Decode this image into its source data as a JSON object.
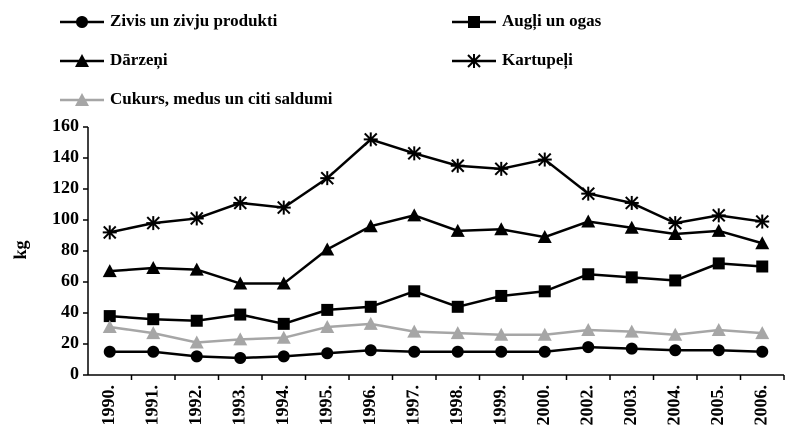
{
  "chart_data": {
    "type": "line",
    "y_label": "kg",
    "categories": [
      "1990.",
      "1991.",
      "1992.",
      "1993.",
      "1994.",
      "1995.",
      "1996.",
      "1997.",
      "1998.",
      "1999.",
      "2000.",
      "2002.",
      "2003.",
      "2004.",
      "2005.",
      "2006."
    ],
    "series": [
      {
        "name": "Zivis un zivju produkti",
        "color": "#000000",
        "marker": "circle",
        "values": [
          15,
          15,
          12,
          11,
          12,
          14,
          16,
          15,
          15,
          15,
          15,
          18,
          17,
          16,
          16,
          15
        ]
      },
      {
        "name": "Augļi un ogas",
        "color": "#000000",
        "marker": "square",
        "values": [
          38,
          36,
          35,
          39,
          33,
          42,
          44,
          54,
          44,
          51,
          54,
          65,
          63,
          61,
          72,
          70
        ]
      },
      {
        "name": "Dārzeņi",
        "color": "#000000",
        "marker": "triangle",
        "values": [
          67,
          69,
          68,
          59,
          59,
          81,
          96,
          103,
          93,
          94,
          89,
          99,
          95,
          91,
          93,
          85
        ]
      },
      {
        "name": "Kartupeļi",
        "color": "#000000",
        "marker": "asterisk",
        "values": [
          92,
          98,
          101,
          111,
          108,
          127,
          152,
          143,
          135,
          133,
          139,
          117,
          111,
          98,
          103,
          99
        ]
      },
      {
        "name": "Cukurs, medus un citi saldumi",
        "color": "#a6a6a6",
        "marker": "triangle",
        "values": [
          31,
          27,
          21,
          23,
          24,
          31,
          33,
          28,
          27,
          26,
          26,
          29,
          28,
          26,
          29,
          27
        ]
      }
    ],
    "ylim": [
      0,
      160
    ],
    "yticks": [
      0,
      20,
      40,
      60,
      80,
      100,
      120,
      140,
      160
    ],
    "grid": false
  }
}
